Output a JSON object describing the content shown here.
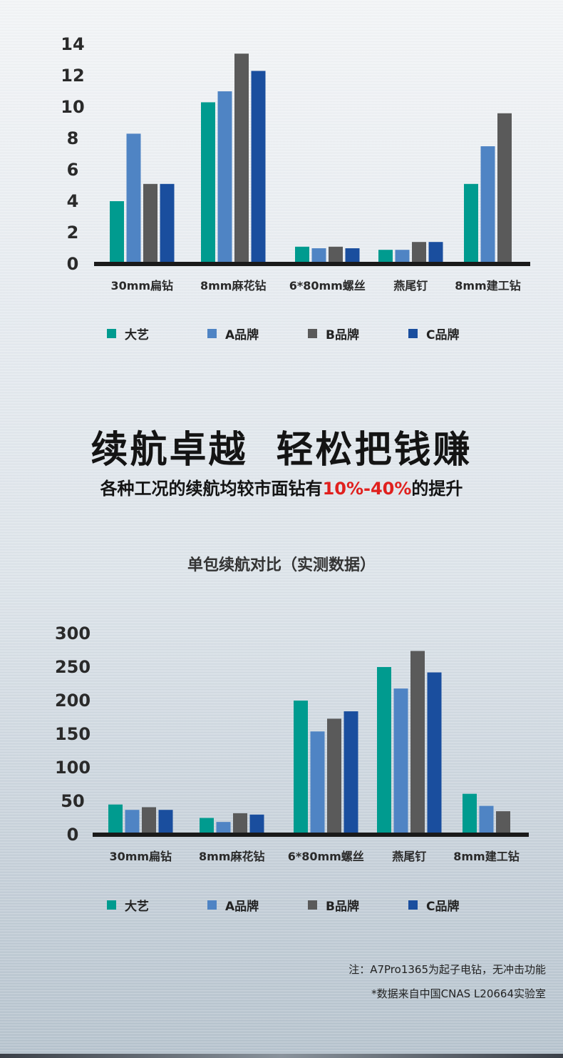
{
  "colors": {
    "dayi": "#009b8f",
    "a_brand": "#4f84c4",
    "b_brand": "#5a5a5a",
    "c_brand": "#1a4e9e",
    "axis": "#1a1a1a",
    "highlight": "#e0201e"
  },
  "headline": {
    "part1": "续航卓越",
    "part2": "轻松把钱赚"
  },
  "subline": {
    "prefix": "各种工况的续航均较市面钻有",
    "highlight": "10%-40%",
    "suffix": "的提升"
  },
  "legend": [
    {
      "label": "大艺",
      "color": "#009b8f"
    },
    {
      "label": "A品牌",
      "color": "#4f84c4"
    },
    {
      "label": "B品牌",
      "color": "#5a5a5a"
    },
    {
      "label": "C品牌",
      "color": "#1a4e9e"
    }
  ],
  "notes": {
    "line1": "注：A7Pro1365为起子电钻，无冲击功能",
    "line2": "*数据来自中国CNAS L20664实验室"
  },
  "chart_data": [
    {
      "type": "bar",
      "title": "",
      "categories": [
        "30mm扁钻",
        "8mm麻花钻",
        "6*80mm螺丝",
        "燕尾钉",
        "8mm建工钻"
      ],
      "series": [
        {
          "name": "大艺",
          "values": [
            4,
            10.3,
            1.1,
            0.9,
            5.1
          ]
        },
        {
          "name": "A品牌",
          "values": [
            8.3,
            11,
            1,
            0.9,
            7.5
          ]
        },
        {
          "name": "B品牌",
          "values": [
            5.1,
            13.4,
            1.1,
            1.4,
            9.6
          ]
        },
        {
          "name": "C品牌",
          "values": [
            5.1,
            12.3,
            1,
            1.4,
            null
          ]
        }
      ],
      "yticks": [
        "0",
        "2",
        "4",
        "6",
        "8",
        "10",
        "12",
        "14"
      ],
      "ylim": [
        0,
        14
      ],
      "grid": false,
      "legend": "bottom"
    },
    {
      "type": "bar",
      "title": "单包续航对比（实测数据）",
      "categories": [
        "30mm扁钻",
        "8mm麻花钻",
        "6*80mm螺丝",
        "燕尾钉",
        "8mm建工钻"
      ],
      "series": [
        {
          "name": "大艺",
          "values": [
            45,
            25,
            200,
            250,
            61
          ]
        },
        {
          "name": "A品牌",
          "values": [
            37,
            19,
            154,
            218,
            43
          ]
        },
        {
          "name": "B品牌",
          "values": [
            41,
            32,
            173,
            274,
            35
          ]
        },
        {
          "name": "C品牌",
          "values": [
            37,
            30,
            184,
            242,
            null
          ]
        }
      ],
      "yticks": [
        "0",
        "50",
        "100",
        "150",
        "200",
        "250",
        "300"
      ],
      "ylim": [
        0,
        300
      ],
      "grid": false,
      "legend": "bottom"
    }
  ]
}
